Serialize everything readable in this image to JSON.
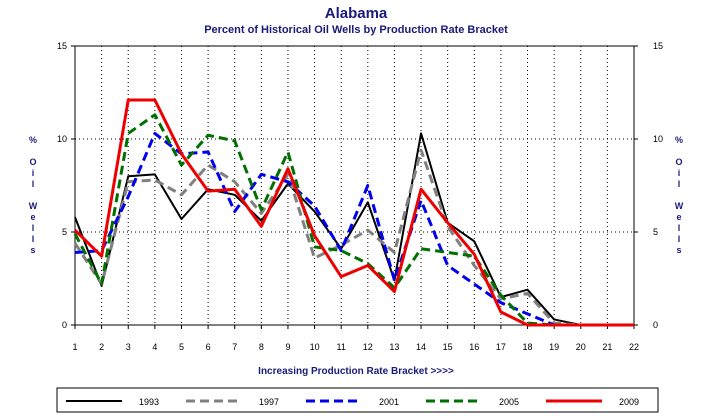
{
  "chart_data": {
    "type": "line",
    "title": "Alabama",
    "subtitle": "Percent of Historical Oil Wells by Production Rate Bracket",
    "xlabel": "Increasing Production Rate Bracket >>>>",
    "ylabel": "% Oil Wells",
    "x": [
      1,
      2,
      3,
      4,
      5,
      6,
      7,
      8,
      9,
      10,
      11,
      12,
      13,
      14,
      15,
      16,
      17,
      18,
      19,
      20,
      21,
      22
    ],
    "ylim": [
      0,
      15
    ],
    "yticks": [
      0,
      5,
      10,
      15
    ],
    "grid": true,
    "legend_position": "bottom",
    "series": [
      {
        "name": "1993",
        "color": "#000000",
        "dash": "solid",
        "width": 2,
        "values": [
          5.8,
          2.1,
          8.0,
          8.1,
          5.7,
          7.3,
          7.0,
          5.6,
          7.6,
          6.1,
          4.1,
          6.6,
          2.4,
          10.3,
          5.5,
          4.5,
          1.5,
          1.9,
          0.3,
          0.0,
          0.0,
          0.0
        ]
      },
      {
        "name": "1997",
        "color": "#808080",
        "dash": "dashed",
        "width": 3,
        "values": [
          4.4,
          2.2,
          7.7,
          7.8,
          7.0,
          8.6,
          7.7,
          6.0,
          8.1,
          3.6,
          4.3,
          5.1,
          3.9,
          9.4,
          5.3,
          3.2,
          1.4,
          1.7,
          0.1,
          0.0,
          0.0,
          0.0
        ]
      },
      {
        "name": "2001",
        "color": "#0000ee",
        "dash": "dashed",
        "width": 3,
        "values": [
          3.9,
          4.0,
          6.9,
          10.3,
          9.2,
          9.3,
          6.1,
          8.1,
          7.7,
          6.4,
          4.0,
          7.5,
          2.4,
          6.7,
          3.2,
          2.2,
          1.2,
          0.6,
          0.0,
          0.0,
          0.0,
          0.0
        ]
      },
      {
        "name": "2005",
        "color": "#007000",
        "dash": "dashed",
        "width": 3,
        "values": [
          4.9,
          2.2,
          10.3,
          11.3,
          8.6,
          10.2,
          9.9,
          6.2,
          9.3,
          4.2,
          4.0,
          3.3,
          2.0,
          4.1,
          3.9,
          3.7,
          1.6,
          0.1,
          0.0,
          0.0,
          0.0,
          0.0
        ]
      },
      {
        "name": "2009",
        "color": "#ee0000",
        "dash": "solid",
        "width": 3,
        "values": [
          5.1,
          3.7,
          12.1,
          12.1,
          9.2,
          7.2,
          7.3,
          5.3,
          8.4,
          4.8,
          2.6,
          3.2,
          1.8,
          7.3,
          5.5,
          3.8,
          0.7,
          0.0,
          0.0,
          0.0,
          0.0,
          0.0
        ]
      }
    ]
  }
}
